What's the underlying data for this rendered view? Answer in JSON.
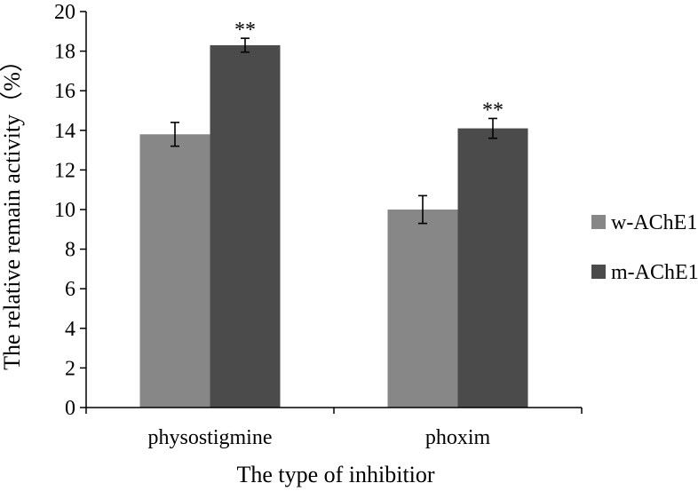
{
  "chart_data": {
    "type": "bar",
    "categories": [
      "physostigmine",
      "phoxim"
    ],
    "series": [
      {
        "name": "w-AChE1",
        "values": [
          13.8,
          10.0
        ],
        "errors": [
          0.6,
          0.7
        ],
        "color": "#878787"
      },
      {
        "name": "m-AChE1",
        "values": [
          18.3,
          14.1
        ],
        "errors": [
          0.35,
          0.5
        ],
        "color": "#4b4b4b"
      }
    ],
    "annotations": [
      {
        "series": 1,
        "category": 0,
        "text": "**"
      },
      {
        "series": 1,
        "category": 1,
        "text": "**"
      }
    ],
    "xlabel": "The type of inhibitior",
    "ylabel": "The relative remain activity（%）",
    "ylim": [
      0,
      20
    ],
    "yticks": [
      0,
      2,
      4,
      6,
      8,
      10,
      12,
      14,
      16,
      18,
      20
    ],
    "grid": false,
    "legend_position": "right"
  }
}
